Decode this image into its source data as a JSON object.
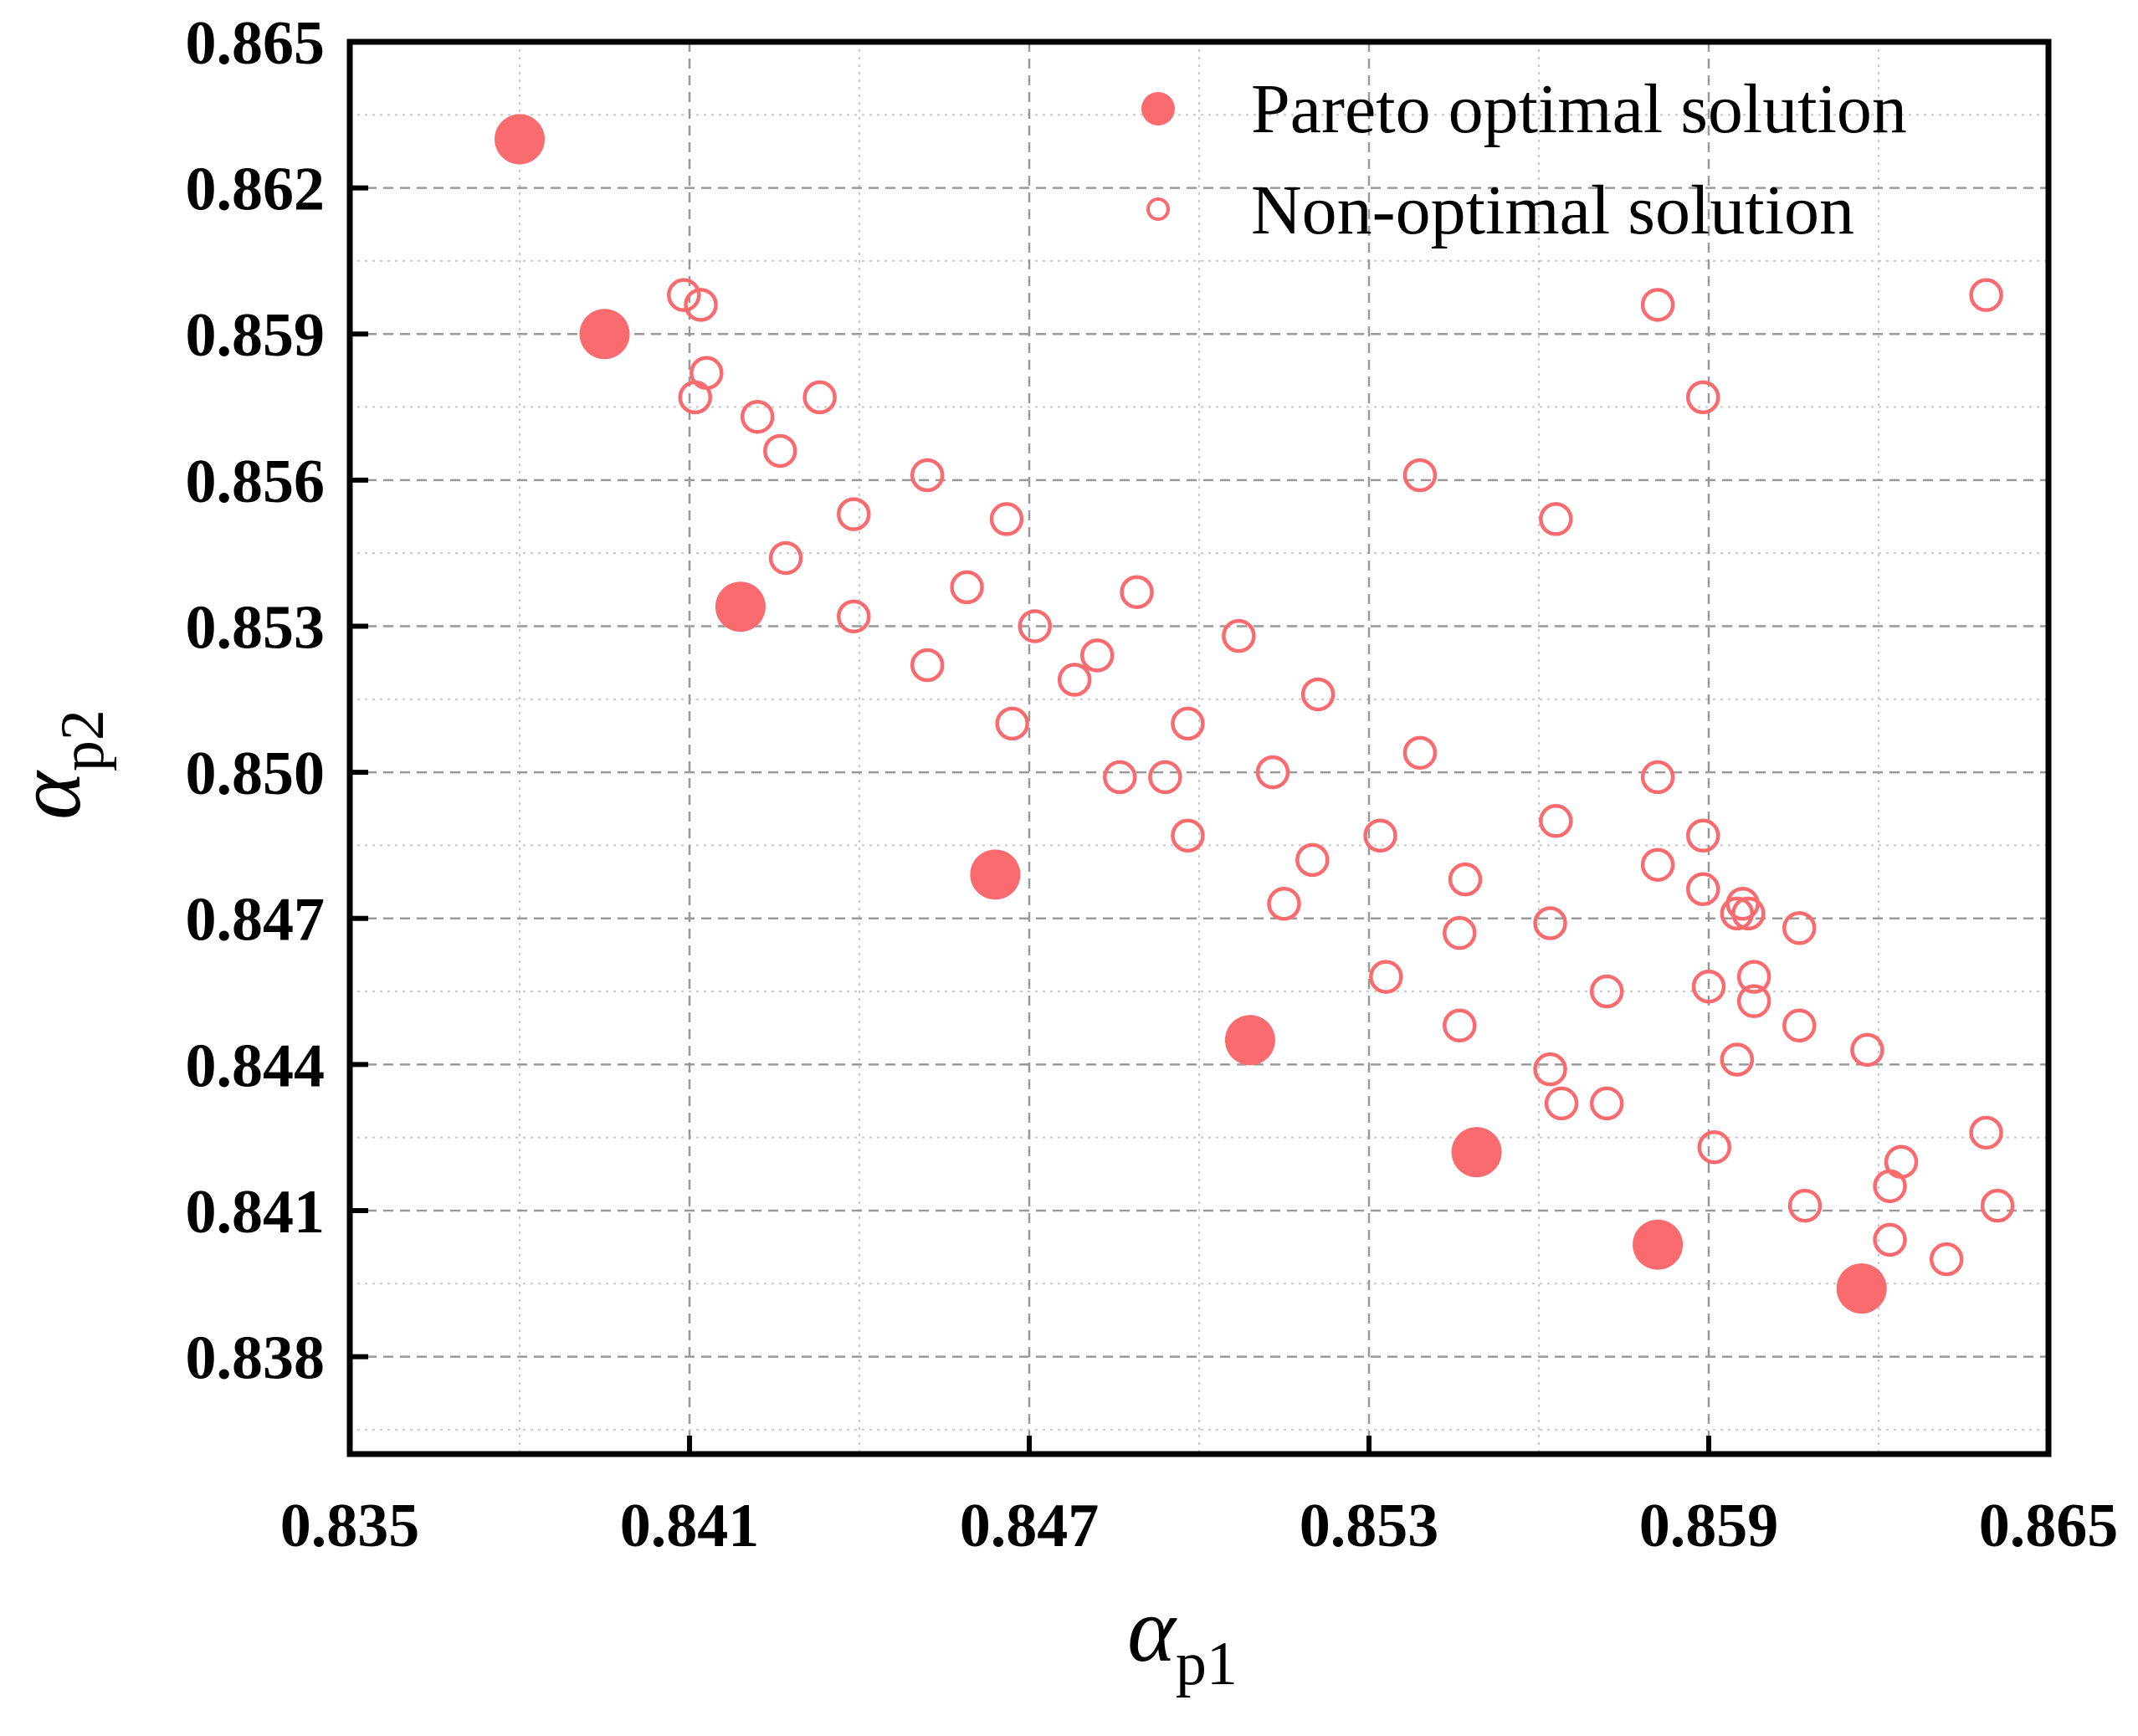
{
  "chart_data": {
    "type": "scatter",
    "title": "",
    "xlabel": {
      "symbol": "α",
      "subscript": "p1"
    },
    "ylabel": {
      "symbol": "α",
      "subscript": "p2"
    },
    "xlim": [
      0.835,
      0.865
    ],
    "ylim": [
      0.836,
      0.865
    ],
    "x_ticks": [
      {
        "value": 0.835,
        "label": "0.835"
      },
      {
        "value": 0.841,
        "label": "0.841"
      },
      {
        "value": 0.847,
        "label": "0.847"
      },
      {
        "value": 0.853,
        "label": "0.853"
      },
      {
        "value": 0.859,
        "label": "0.859"
      },
      {
        "value": 0.865,
        "label": "0.865"
      }
    ],
    "y_ticks": [
      {
        "value": 0.838,
        "label": "0.838"
      },
      {
        "value": 0.841,
        "label": "0.841"
      },
      {
        "value": 0.844,
        "label": "0.844"
      },
      {
        "value": 0.847,
        "label": "0.847"
      },
      {
        "value": 0.85,
        "label": "0.850"
      },
      {
        "value": 0.853,
        "label": "0.853"
      },
      {
        "value": 0.856,
        "label": "0.856"
      },
      {
        "value": 0.859,
        "label": "0.859"
      },
      {
        "value": 0.862,
        "label": "0.862"
      },
      {
        "value": 0.865,
        "label": "0.865"
      }
    ],
    "grid": true,
    "legend_position": "top-right",
    "colors": {
      "marker": "#f96b6f",
      "axis": "#000000",
      "grid": "#999999"
    },
    "series": [
      {
        "name": "Pareto optimal solution",
        "marker": "filled-circle",
        "points": [
          [
            0.838,
            0.863
          ],
          [
            0.8395,
            0.859
          ],
          [
            0.8419,
            0.8534
          ],
          [
            0.8464,
            0.8479
          ],
          [
            0.8509,
            0.8445
          ],
          [
            0.8549,
            0.8422
          ],
          [
            0.8581,
            0.8403
          ],
          [
            0.8617,
            0.8394
          ]
        ]
      },
      {
        "name": "Non-optimal solution",
        "marker": "open-circle",
        "points": [
          [
            0.8409,
            0.8598
          ],
          [
            0.8412,
            0.8596
          ],
          [
            0.8413,
            0.8582
          ],
          [
            0.8411,
            0.8577
          ],
          [
            0.8422,
            0.8573
          ],
          [
            0.8426,
            0.8566
          ],
          [
            0.8433,
            0.8577
          ],
          [
            0.8427,
            0.8544
          ],
          [
            0.8439,
            0.8553
          ],
          [
            0.8439,
            0.8532
          ],
          [
            0.8452,
            0.8561
          ],
          [
            0.8452,
            0.8522
          ],
          [
            0.8459,
            0.8538
          ],
          [
            0.8466,
            0.8552
          ],
          [
            0.8467,
            0.851
          ],
          [
            0.8471,
            0.853
          ],
          [
            0.8478,
            0.8519
          ],
          [
            0.8482,
            0.8524
          ],
          [
            0.8486,
            0.8499
          ],
          [
            0.8489,
            0.8537
          ],
          [
            0.8494,
            0.8499
          ],
          [
            0.8498,
            0.851
          ],
          [
            0.8498,
            0.8487
          ],
          [
            0.8507,
            0.8528
          ],
          [
            0.8513,
            0.85
          ],
          [
            0.8515,
            0.8473
          ],
          [
            0.852,
            0.8482
          ],
          [
            0.8521,
            0.8516
          ],
          [
            0.8532,
            0.8487
          ],
          [
            0.8533,
            0.8458
          ],
          [
            0.8539,
            0.8561
          ],
          [
            0.8539,
            0.8504
          ],
          [
            0.8547,
            0.8478
          ],
          [
            0.8546,
            0.8467
          ],
          [
            0.8546,
            0.8448
          ],
          [
            0.8562,
            0.8439
          ],
          [
            0.8563,
            0.8552
          ],
          [
            0.8563,
            0.849
          ],
          [
            0.8562,
            0.8469
          ],
          [
            0.8564,
            0.8432
          ],
          [
            0.8572,
            0.8455
          ],
          [
            0.8572,
            0.8432
          ],
          [
            0.8581,
            0.8596
          ],
          [
            0.8581,
            0.8499
          ],
          [
            0.8581,
            0.8481
          ],
          [
            0.8589,
            0.8577
          ],
          [
            0.8589,
            0.8487
          ],
          [
            0.8589,
            0.8476
          ],
          [
            0.859,
            0.8456
          ],
          [
            0.8591,
            0.8423
          ],
          [
            0.8595,
            0.8471
          ],
          [
            0.8596,
            0.8473
          ],
          [
            0.8597,
            0.8471
          ],
          [
            0.8598,
            0.8458
          ],
          [
            0.8598,
            0.8453
          ],
          [
            0.8595,
            0.8441
          ],
          [
            0.8606,
            0.8468
          ],
          [
            0.8606,
            0.8448
          ],
          [
            0.8607,
            0.8411
          ],
          [
            0.8618,
            0.8443
          ],
          [
            0.8622,
            0.8415
          ],
          [
            0.8622,
            0.8404
          ],
          [
            0.8624,
            0.842
          ],
          [
            0.8632,
            0.84
          ],
          [
            0.8639,
            0.8598
          ],
          [
            0.8639,
            0.8426
          ],
          [
            0.8641,
            0.8411
          ]
        ]
      }
    ]
  }
}
